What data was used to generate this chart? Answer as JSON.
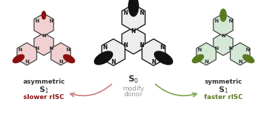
{
  "bg_color": "#ffffff",
  "left_fill": "#f0d0d0",
  "left_donor_color": "#8b1010",
  "center_fill": "#eeeeee",
  "center_donor_color": "#111111",
  "right_fill": "#d5e8d5",
  "right_donor_color": "#5a7a20",
  "bond_color": "#333333",
  "text_asymmetric": "asymmetric",
  "text_symmetric": "symmetric",
  "text_S1": "S$_1$",
  "text_S0": "S$_0$",
  "text_slower": "slower rISC",
  "text_faster": "faster rISC",
  "text_modify": "modify",
  "text_donor": "donor",
  "arrow_left_color": "#d08080",
  "arrow_right_color": "#80a850",
  "label_color": "#333333"
}
